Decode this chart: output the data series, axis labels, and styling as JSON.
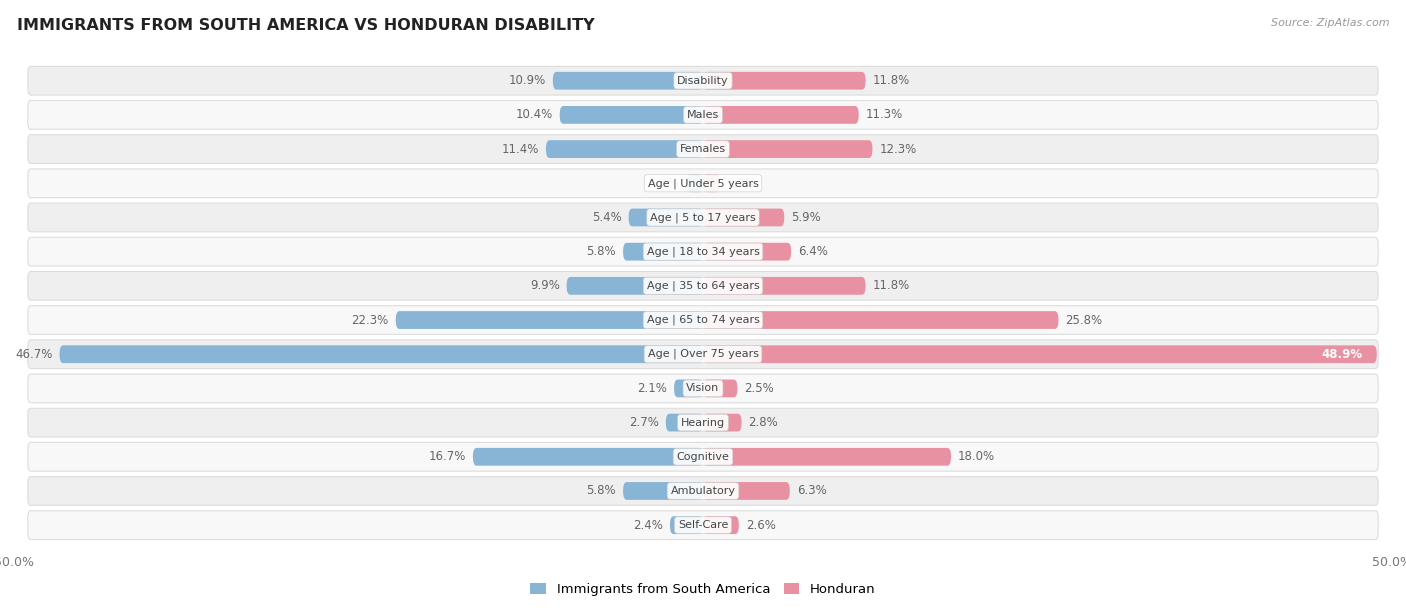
{
  "title": "IMMIGRANTS FROM SOUTH AMERICA VS HONDURAN DISABILITY",
  "source": "Source: ZipAtlas.com",
  "categories": [
    "Disability",
    "Males",
    "Females",
    "Age | Under 5 years",
    "Age | 5 to 17 years",
    "Age | 18 to 34 years",
    "Age | 35 to 64 years",
    "Age | 65 to 74 years",
    "Age | Over 75 years",
    "Vision",
    "Hearing",
    "Cognitive",
    "Ambulatory",
    "Self-Care"
  ],
  "south_america": [
    10.9,
    10.4,
    11.4,
    1.2,
    5.4,
    5.8,
    9.9,
    22.3,
    46.7,
    2.1,
    2.7,
    16.7,
    5.8,
    2.4
  ],
  "honduran": [
    11.8,
    11.3,
    12.3,
    1.2,
    5.9,
    6.4,
    11.8,
    25.8,
    48.9,
    2.5,
    2.8,
    18.0,
    6.3,
    2.6
  ],
  "max_val": 50.0,
  "blue_color": "#88b4d5",
  "pink_color": "#e891a3",
  "bg_row_even": "#efefef",
  "bg_row_odd": "#f8f8f8",
  "bar_height": 0.52,
  "legend_blue": "Immigrants from South America",
  "legend_pink": "Honduran",
  "label_fontsize": 8.5,
  "cat_fontsize": 8.0,
  "val_color": "#666666",
  "cat_label_color": "#444444"
}
